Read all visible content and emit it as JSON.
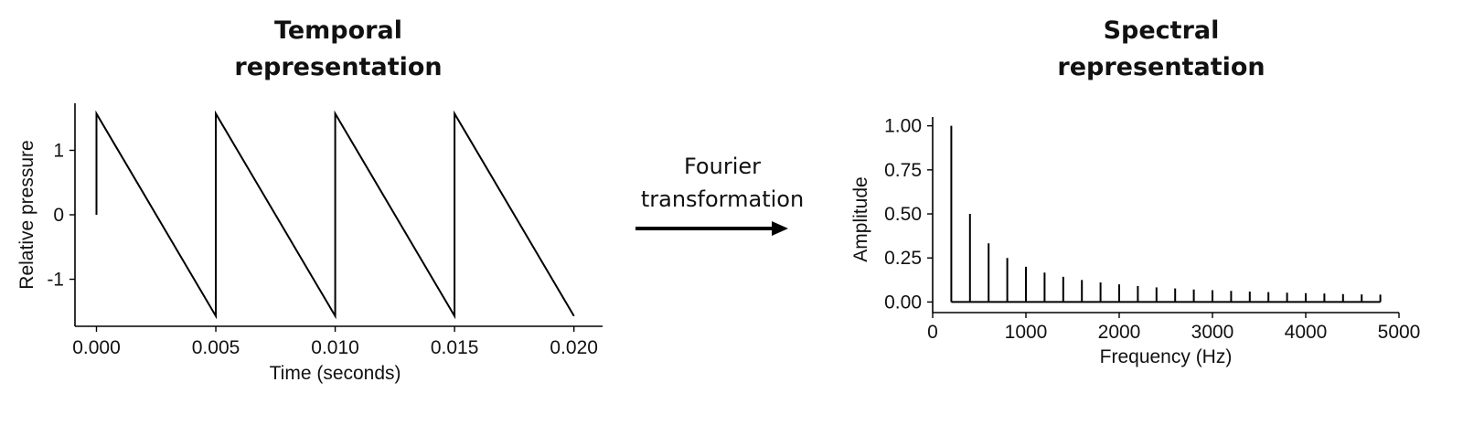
{
  "titles": {
    "temporal_line1": "Temporal",
    "temporal_line2": "representation",
    "spectral_line1": "Spectral",
    "spectral_line2": "representation"
  },
  "arrow": {
    "label_line1": "Fourier",
    "label_line2": "transformation",
    "color": "#000000"
  },
  "chart_data": [
    {
      "type": "line",
      "title": "Temporal representation",
      "xlabel": "Time (seconds)",
      "ylabel": "Relative pressure",
      "xlim": [
        -0.0009,
        0.0212
      ],
      "ylim": [
        -1.73,
        1.73
      ],
      "x_ticks": [
        0.0,
        0.005,
        0.01,
        0.015,
        0.02
      ],
      "x_tick_labels": [
        "0.000",
        "0.005",
        "0.010",
        "0.015",
        "0.020"
      ],
      "y_ticks": [
        -1,
        0,
        1
      ],
      "y_tick_labels": [
        "-1",
        "0",
        "1"
      ],
      "grid": false,
      "series": [
        {
          "color": "#000000",
          "x": [
            0.0,
            0.0,
            0.005,
            0.005,
            0.01,
            0.01,
            0.015,
            0.015,
            0.02
          ],
          "y": [
            0.0,
            1.57,
            -1.57,
            1.57,
            -1.57,
            1.57,
            -1.57,
            1.57,
            -1.57
          ]
        }
      ]
    },
    {
      "type": "bar",
      "title": "Spectral representation",
      "xlabel": "Frequency (Hz)",
      "ylabel": "Amplitude",
      "xlim": [
        0,
        5000
      ],
      "ylim": [
        -0.06,
        1.05
      ],
      "x_ticks": [
        0,
        1000,
        2000,
        3000,
        4000,
        5000
      ],
      "x_tick_labels": [
        "0",
        "1000",
        "2000",
        "3000",
        "4000",
        "5000"
      ],
      "y_ticks": [
        0.0,
        0.25,
        0.5,
        0.75,
        1.0
      ],
      "y_tick_labels": [
        "0.00",
        "0.25",
        "0.50",
        "0.75",
        "1.00"
      ],
      "grid": false,
      "baseline": {
        "from": 200,
        "to": 4800,
        "value": 0
      },
      "frequencies": [
        200,
        400,
        600,
        800,
        1000,
        1200,
        1400,
        1600,
        1800,
        2000,
        2200,
        2400,
        2600,
        2800,
        3000,
        3200,
        3400,
        3600,
        3800,
        4000,
        4200,
        4400,
        4600,
        4800
      ],
      "values": [
        1.0,
        0.5,
        0.333,
        0.25,
        0.2,
        0.167,
        0.143,
        0.125,
        0.111,
        0.1,
        0.091,
        0.083,
        0.077,
        0.071,
        0.067,
        0.063,
        0.059,
        0.056,
        0.053,
        0.05,
        0.048,
        0.045,
        0.043,
        0.042
      ]
    }
  ]
}
